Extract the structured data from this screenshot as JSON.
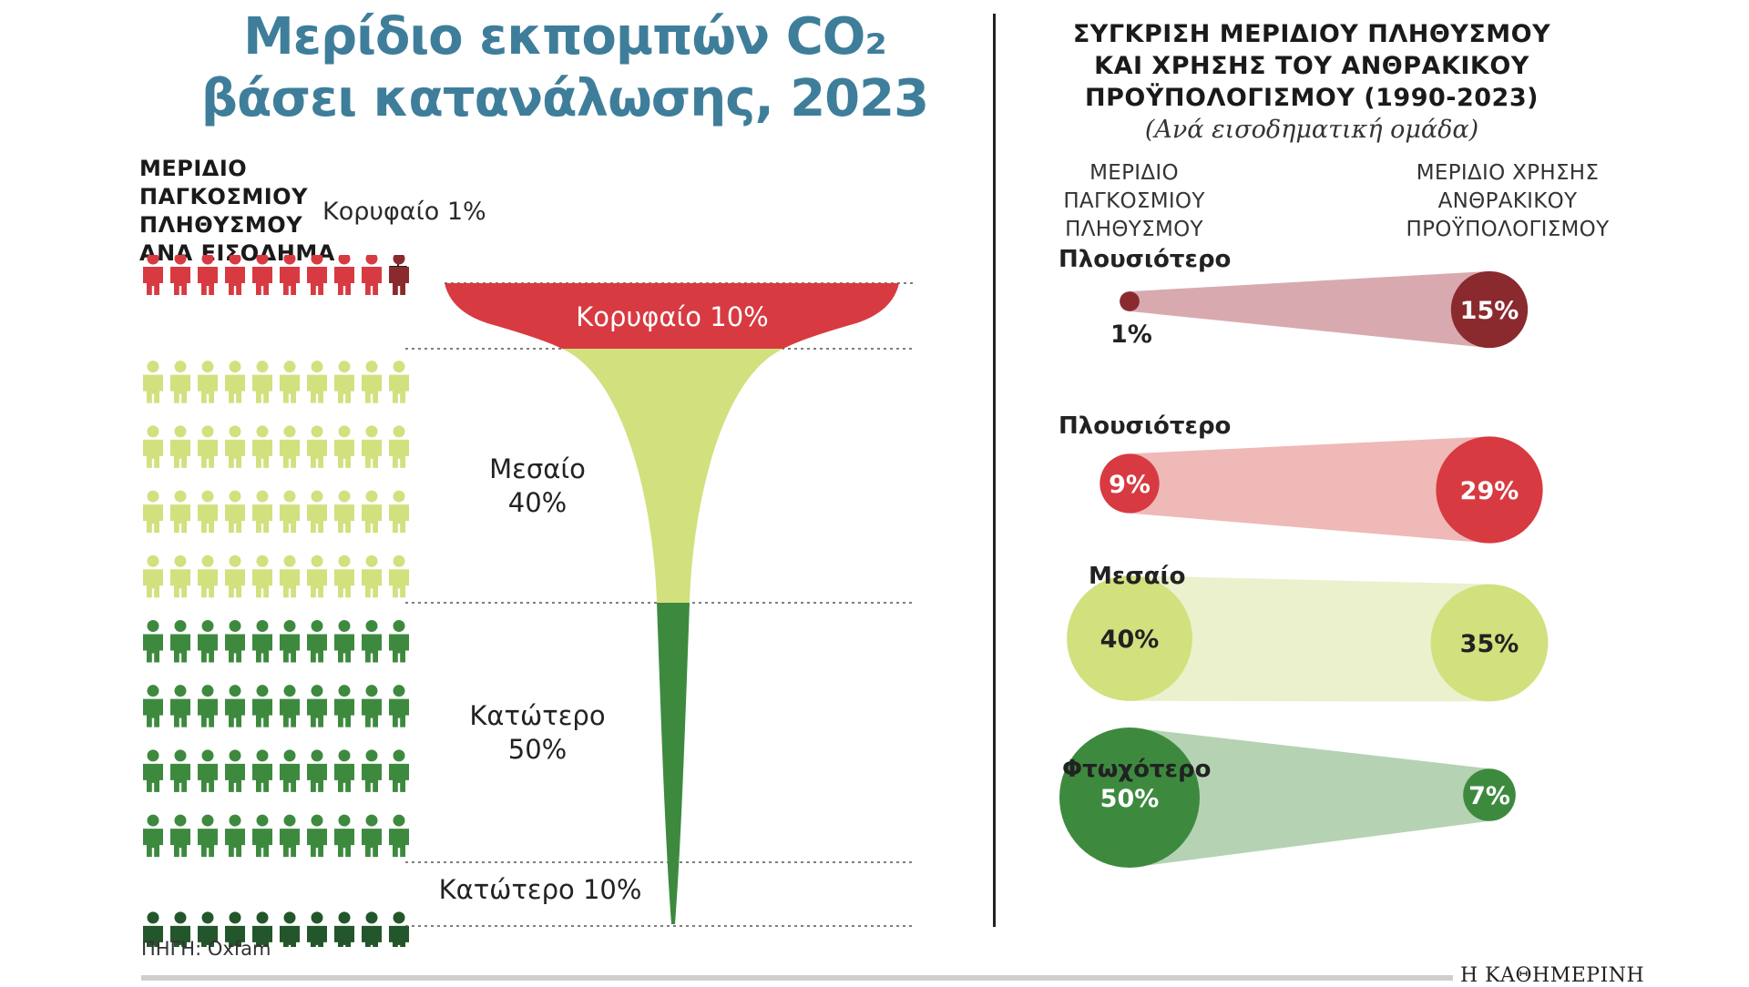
{
  "title": {
    "line1": "Μερίδιο εκπομπών CO₂",
    "line2": "βάσει κατανάλωσης, 2023"
  },
  "left": {
    "heading": [
      "ΜΕΡΙΔΙΟ",
      "ΠΑΓΚΟΣΜΙΟΥ",
      "ΠΛΗΘΥΣΜΟΥ",
      "ΑΝΑ ΕΙΣΟΔΗΜΑ"
    ],
    "top1_label": "Κορυφαίο 1%",
    "funnel": [
      {
        "line1": "Κορυφαίο 10%",
        "line2": ""
      },
      {
        "line1": "Μεσαίο",
        "line2": "40%"
      },
      {
        "line1": "Κατώτερο",
        "line2": "50%"
      },
      {
        "line1": "Κατώτερο 10%",
        "line2": ""
      }
    ],
    "source": "ΠΗΓΗ: Oxfam"
  },
  "right": {
    "title": [
      "ΣΥΓΚΡΙΣΗ ΜΕΡΙΔΙΟΥ ΠΛΗΘΥΣΜΟΥ",
      "ΚΑΙ ΧΡΗΣΗΣ ΤΟΥ ΑΝΘΡΑΚΙΚΟΥ",
      "ΠΡΟΫΠΟΛΟΓΙΣΜΟΥ (1990-2023)"
    ],
    "subtitle": "(Ανά εισοδηματική ομάδα)",
    "col_left": [
      "ΜΕΡΙΔΙΟ",
      "ΠΑΓΚΟΣΜΙΟΥ",
      "ΠΛΗΘΥΣΜΟΥ"
    ],
    "col_right": [
      "ΜΕΡΙΔΙΟ ΧΡΗΣΗΣ",
      "ΑΝΘΡΑΚΙΚΟΥ",
      "ΠΡΟΫΠΟΛΟΓΙΣΜΟΥ"
    ]
  },
  "brand": "Η ΚΑΘΗΜΕΡΙΝΗ",
  "colors": {
    "title": "#3e7e9a",
    "top1": "#8a2a2e",
    "top10": "#d83a41",
    "middle": "#d2e07e",
    "bottom": "#3d8a3f",
    "bottom10": "#23562a",
    "text_dark": "#222222",
    "text_light": "#ffffff"
  },
  "chart_data": [
    {
      "type": "pictogram",
      "title": "ΜΕΡΙΔΙΟ ΠΑΓΚΟΣΜΙΟΥ ΠΛΗΘΥΣΜΟΥ ΑΝΑ ΕΙΣΟΔΗΜΑ",
      "total_icons": 100,
      "icons_per_row": 10,
      "groups": [
        {
          "name": "Κορυφαίο 1%",
          "count": 1
        },
        {
          "name": "Κορυφαίο 10%",
          "count": 9
        },
        {
          "name": "Μεσαίο 40%",
          "count": 40
        },
        {
          "name": "Κατώτερο 50%",
          "count": 40
        },
        {
          "name": "Κατώτερο 10%",
          "count": 10
        }
      ]
    },
    {
      "type": "funnel",
      "title": "Μερίδιο εκπομπών CO₂ βάσει κατανάλωσης, 2023",
      "categories": [
        "Κορυφαίο 10%",
        "Μεσαίο 40%",
        "Κατώτερο 50%",
        "Κατώτερο 10%"
      ]
    },
    {
      "type": "bubble-comparison",
      "title": "ΣΥΓΚΡΙΣΗ ΜΕΡΙΔΙΟΥ ΠΛΗΘΥΣΜΟΥ ΚΑΙ ΧΡΗΣΗΣ ΤΟΥ ΑΝΘΡΑΚΙΚΟΥ ΠΡΟΫΠΟΛΟΓΙΣΜΟΥ (1990-2023)",
      "unit": "%",
      "series_labels": [
        "ΜΕΡΙΔΙΟ ΠΑΓΚΟΣΜΙΟΥ ΠΛΗΘΥΣΜΟΥ",
        "ΜΕΡΙΔΙΟ ΧΡΗΣΗΣ ΑΝΘΡΑΚΙΚΟΥ ΠΡΟΫΠΟΛΟΓΙΣΜΟΥ"
      ],
      "groups": [
        {
          "name": "Πλουσιότερο",
          "population_share": 1,
          "population_label": "1%",
          "budget_share": 15,
          "budget_label": "15%"
        },
        {
          "name": "Πλουσιότερο",
          "population_share": 9,
          "population_label": "9%",
          "budget_share": 29,
          "budget_label": "29%"
        },
        {
          "name": "Μεσαίο",
          "population_share": 40,
          "population_label": "40%",
          "budget_share": 35,
          "budget_label": "35%"
        },
        {
          "name": "Φτωχότερο",
          "population_share": 50,
          "population_label": "50%",
          "budget_share": 7,
          "budget_label": "7%"
        }
      ]
    }
  ]
}
